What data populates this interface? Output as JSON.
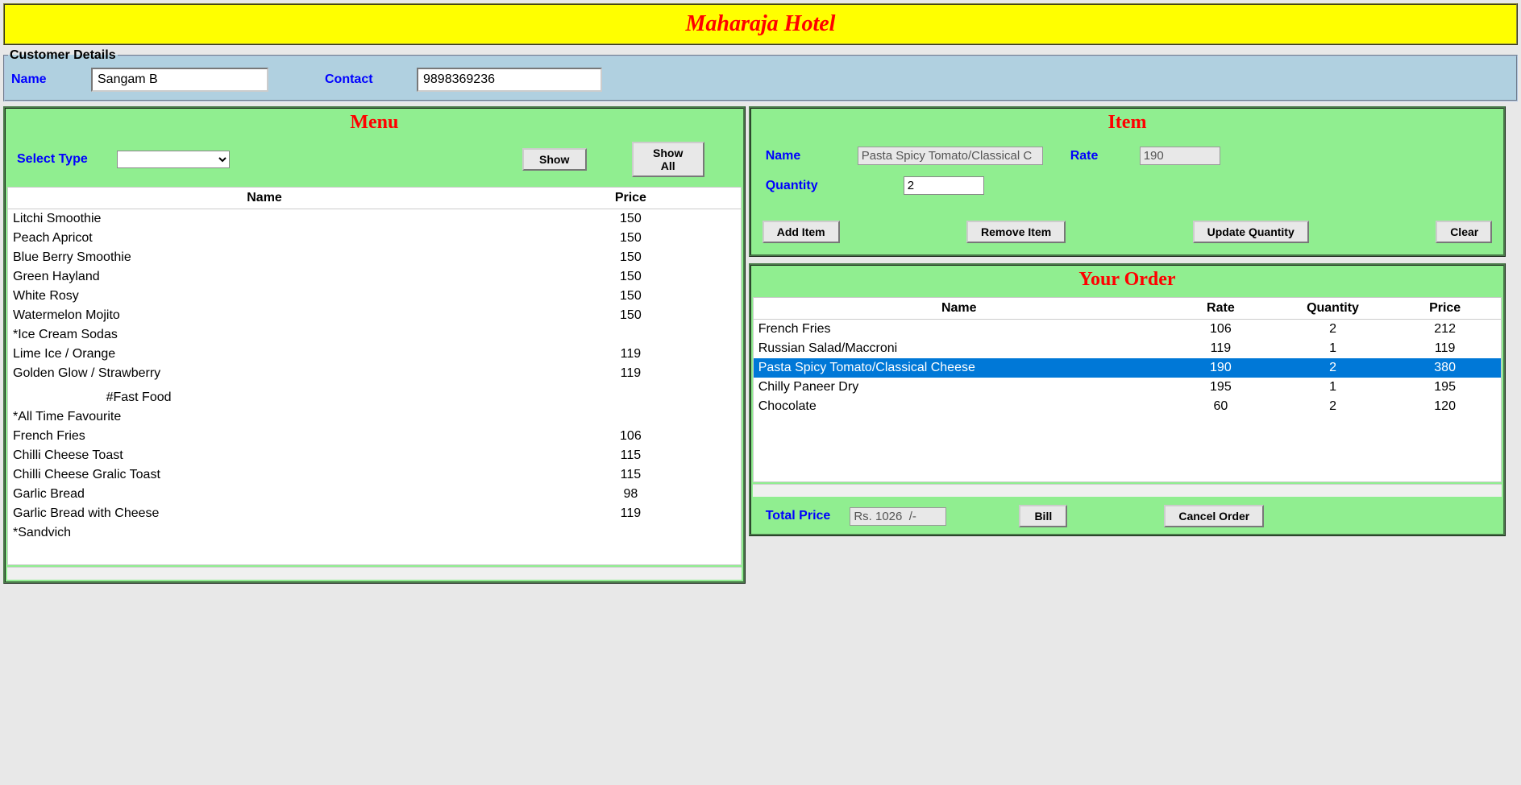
{
  "header": {
    "title": "Maharaja Hotel"
  },
  "customer": {
    "legend": "Customer Details",
    "name_label": "Name",
    "name_value": "Sangam B",
    "contact_label": "Contact",
    "contact_value": "9898369236"
  },
  "menu": {
    "title": "Menu",
    "select_type_label": "Select Type",
    "show_btn": "Show",
    "show_all_btn": "Show All",
    "columns": [
      "Name",
      "Price"
    ],
    "rows": [
      {
        "name": "Litchi Smoothie",
        "price": "150"
      },
      {
        "name": "Peach Apricot",
        "price": "150"
      },
      {
        "name": "Blue Berry Smoothie",
        "price": "150"
      },
      {
        "name": "Green Hayland",
        "price": "150"
      },
      {
        "name": "White Rosy",
        "price": "150"
      },
      {
        "name": "Watermelon Mojito",
        "price": "150"
      },
      {
        "name": "*Ice Cream Sodas",
        "price": ""
      },
      {
        "name": "Lime Ice / Orange",
        "price": "119"
      },
      {
        "name": "Golden Glow / Strawberry",
        "price": "119"
      },
      {
        "name": "",
        "price": ""
      },
      {
        "name": "                          #Fast Food",
        "price": ""
      },
      {
        "name": "*All Time Favourite",
        "price": ""
      },
      {
        "name": "French Fries",
        "price": "106"
      },
      {
        "name": "Chilli Cheese Toast",
        "price": "115"
      },
      {
        "name": "Chilli Cheese Gralic Toast",
        "price": "115"
      },
      {
        "name": "Garlic Bread",
        "price": "98"
      },
      {
        "name": "Garlic Bread with Cheese",
        "price": "119"
      },
      {
        "name": "*Sandvich",
        "price": ""
      }
    ]
  },
  "item": {
    "title": "Item",
    "name_label": "Name",
    "name_value": "Pasta Spicy Tomato/Classical C",
    "rate_label": "Rate",
    "rate_value": "190",
    "qty_label": "Quantity",
    "qty_value": "2",
    "add_btn": "Add Item",
    "remove_btn": "Remove Item",
    "update_btn": "Update Quantity",
    "clear_btn": "Clear"
  },
  "order": {
    "title": "Your Order",
    "columns": [
      "Name",
      "Rate",
      "Quantity",
      "Price"
    ],
    "rows": [
      {
        "name": "French Fries",
        "rate": "106",
        "qty": "2",
        "price": "212",
        "selected": false
      },
      {
        "name": "Russian Salad/Maccroni",
        "rate": "119",
        "qty": "1",
        "price": "119",
        "selected": false
      },
      {
        "name": "Pasta Spicy Tomato/Classical Cheese",
        "rate": "190",
        "qty": "2",
        "price": "380",
        "selected": true
      },
      {
        "name": "Chilly Paneer Dry",
        "rate": "195",
        "qty": "1",
        "price": "195",
        "selected": false
      },
      {
        "name": "Chocolate",
        "rate": "60",
        "qty": "2",
        "price": "120",
        "selected": false
      }
    ],
    "total_label": "Total Price",
    "total_value": "Rs. 1026  /-",
    "bill_btn": "Bill",
    "cancel_btn": "Cancel Order"
  },
  "colors": {
    "header_bg": "#ffff00",
    "title_color": "#ff0000",
    "panel_bg": "#90ee90",
    "label_color": "#0000ff",
    "customer_bg": "#b0d0e0",
    "selected_row": "#0078d7"
  }
}
